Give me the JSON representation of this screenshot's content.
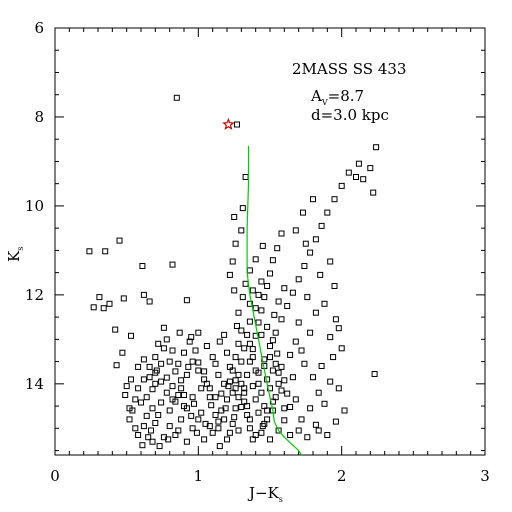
{
  "chart_data": {
    "type": "scatter",
    "title": "",
    "xlabel": {
      "main": "J−K",
      "sub": "s"
    },
    "ylabel": {
      "main": "K",
      "sub": "s"
    },
    "xlim": [
      0,
      3
    ],
    "ylim": [
      15.6,
      6
    ],
    "y_inverted": true,
    "xticks": [
      "0",
      "1",
      "2",
      "3"
    ],
    "yticks": [
      "6",
      "8",
      "10",
      "12",
      "14"
    ],
    "grid": false,
    "annotations": {
      "cluster": "2MASS SS 433",
      "av_main": "A",
      "av_sub": "V",
      "av_value": "=8.7",
      "distance": "d=3.0 kpc"
    },
    "highlight_star": {
      "x": 1.21,
      "y": 8.17,
      "color": "#cc0000"
    },
    "isochrone": {
      "color": "#00cc00",
      "x": [
        1.35,
        1.35,
        1.34,
        1.34,
        1.34,
        1.36,
        1.39,
        1.42,
        1.45,
        1.48,
        1.5,
        1.52,
        1.53,
        1.56,
        1.6,
        1.65,
        1.7,
        1.72
      ],
      "y": [
        8.65,
        9.5,
        10.5,
        11.0,
        11.5,
        12.0,
        12.5,
        13.0,
        13.5,
        14.0,
        14.3,
        14.6,
        14.85,
        15.05,
        15.2,
        15.35,
        15.5,
        15.6
      ]
    },
    "series": [
      {
        "marker": "open-square",
        "color": "#000000",
        "points": [
          [
            0.85,
            7.57
          ],
          [
            0.24,
            11.02
          ],
          [
            0.35,
            11.02
          ],
          [
            0.45,
            10.78
          ],
          [
            0.31,
            12.05
          ],
          [
            0.27,
            12.28
          ],
          [
            0.61,
            11.35
          ],
          [
            0.62,
            12.0
          ],
          [
            0.34,
            12.3
          ],
          [
            0.38,
            12.2
          ],
          [
            0.48,
            12.08
          ],
          [
            0.66,
            12.15
          ],
          [
            0.53,
            12.92
          ],
          [
            0.92,
            12.12
          ],
          [
            0.82,
            11.32
          ],
          [
            0.62,
            13.45
          ],
          [
            0.66,
            13.62
          ],
          [
            0.71,
            13.7
          ],
          [
            0.5,
            14.05
          ],
          [
            0.49,
            14.25
          ],
          [
            0.47,
            13.3
          ],
          [
            0.42,
            12.78
          ],
          [
            0.43,
            13.58
          ],
          [
            0.53,
            13.9
          ],
          [
            0.58,
            13.62
          ],
          [
            0.6,
            14.42
          ],
          [
            0.56,
            15.0
          ],
          [
            0.61,
            15.38
          ],
          [
            0.65,
            15.2
          ],
          [
            0.52,
            14.55
          ],
          [
            0.64,
            14.72
          ],
          [
            0.7,
            14.88
          ],
          [
            0.78,
            13.86
          ],
          [
            0.82,
            14.05
          ],
          [
            0.88,
            13.92
          ],
          [
            0.9,
            14.25
          ],
          [
            0.93,
            13.62
          ],
          [
            0.87,
            12.85
          ],
          [
            0.72,
            13.1
          ],
          [
            0.76,
            12.74
          ],
          [
            0.95,
            12.95
          ],
          [
            0.98,
            13.25
          ],
          [
            1.0,
            13.52
          ],
          [
            1.04,
            13.72
          ],
          [
            1.06,
            14.0
          ],
          [
            1.08,
            14.3
          ],
          [
            1.12,
            13.55
          ],
          [
            1.15,
            13.05
          ],
          [
            1.18,
            12.9
          ],
          [
            1.2,
            13.3
          ],
          [
            1.22,
            13.62
          ],
          [
            1.26,
            13.92
          ],
          [
            1.24,
            14.2
          ],
          [
            1.19,
            14.55
          ],
          [
            1.14,
            14.85
          ],
          [
            1.1,
            15.1
          ],
          [
            1.05,
            14.9
          ],
          [
            0.99,
            15.1
          ],
          [
            0.95,
            14.72
          ],
          [
            0.92,
            15.3
          ],
          [
            0.86,
            15.05
          ],
          [
            0.8,
            14.6
          ],
          [
            0.74,
            14.42
          ],
          [
            0.68,
            14.12
          ],
          [
            0.67,
            15.05
          ],
          [
            0.73,
            15.4
          ],
          [
            0.79,
            15.25
          ],
          [
            0.84,
            14.4
          ],
          [
            0.97,
            14.45
          ],
          [
            1.02,
            14.65
          ],
          [
            1.09,
            14.48
          ],
          [
            1.16,
            14.22
          ],
          [
            1.21,
            14.05
          ],
          [
            1.25,
            14.75
          ],
          [
            1.28,
            15.05
          ],
          [
            1.3,
            14.52
          ],
          [
            1.32,
            14.1
          ],
          [
            1.34,
            13.8
          ],
          [
            1.36,
            13.5
          ],
          [
            1.38,
            13.22
          ],
          [
            1.4,
            12.92
          ],
          [
            1.42,
            12.62
          ],
          [
            1.44,
            12.35
          ],
          [
            1.46,
            12.05
          ],
          [
            1.48,
            11.8
          ],
          [
            1.5,
            11.52
          ],
          [
            1.52,
            11.22
          ],
          [
            1.55,
            10.95
          ],
          [
            1.58,
            10.62
          ],
          [
            1.45,
            10.9
          ],
          [
            1.4,
            11.2
          ],
          [
            1.36,
            11.45
          ],
          [
            1.33,
            11.75
          ],
          [
            1.31,
            12.05
          ],
          [
            1.28,
            12.4
          ],
          [
            1.27,
            12.7
          ],
          [
            1.25,
            11.9
          ],
          [
            1.22,
            11.55
          ],
          [
            1.24,
            11.25
          ],
          [
            1.26,
            10.85
          ],
          [
            1.3,
            10.55
          ],
          [
            1.33,
            9.35
          ],
          [
            1.25,
            10.25
          ],
          [
            1.31,
            10.05
          ],
          [
            1.48,
            12.72
          ],
          [
            1.52,
            13.02
          ],
          [
            1.55,
            13.32
          ],
          [
            1.58,
            13.62
          ],
          [
            1.6,
            13.92
          ],
          [
            1.62,
            14.22
          ],
          [
            1.64,
            14.52
          ],
          [
            1.6,
            14.82
          ],
          [
            1.56,
            15.05
          ],
          [
            1.5,
            15.25
          ],
          [
            1.45,
            14.95
          ],
          [
            1.42,
            14.65
          ],
          [
            1.4,
            14.35
          ],
          [
            1.38,
            14.05
          ],
          [
            1.42,
            13.75
          ],
          [
            1.46,
            13.45
          ],
          [
            1.5,
            13.15
          ],
          [
            1.54,
            12.85
          ],
          [
            1.58,
            12.55
          ],
          [
            1.62,
            12.25
          ],
          [
            1.66,
            11.95
          ],
          [
            1.7,
            11.65
          ],
          [
            1.74,
            11.35
          ],
          [
            1.78,
            11.05
          ],
          [
            1.82,
            10.75
          ],
          [
            1.86,
            10.45
          ],
          [
            1.9,
            10.15
          ],
          [
            1.95,
            9.85
          ],
          [
            2.0,
            9.55
          ],
          [
            2.05,
            9.25
          ],
          [
            2.1,
            9.35
          ],
          [
            2.12,
            9.05
          ],
          [
            2.15,
            9.4
          ],
          [
            2.2,
            9.15
          ],
          [
            2.24,
            8.68
          ],
          [
            2.22,
            9.7
          ],
          [
            2.23,
            13.78
          ],
          [
            1.72,
            13.25
          ],
          [
            1.78,
            12.85
          ],
          [
            1.82,
            12.4
          ],
          [
            1.76,
            12.05
          ],
          [
            1.7,
            12.62
          ],
          [
            1.68,
            13.05
          ],
          [
            1.74,
            13.55
          ],
          [
            1.8,
            13.85
          ],
          [
            1.84,
            14.2
          ],
          [
            1.78,
            14.55
          ],
          [
            1.72,
            14.8
          ],
          [
            1.68,
            14.35
          ],
          [
            1.66,
            13.85
          ],
          [
            1.64,
            13.35
          ],
          [
            1.86,
            13.6
          ],
          [
            1.92,
            13.95
          ],
          [
            1.88,
            14.45
          ],
          [
            1.82,
            14.92
          ],
          [
            1.76,
            15.2
          ],
          [
            1.7,
            15.05
          ],
          [
            1.64,
            15.15
          ],
          [
            1.92,
            12.95
          ],
          [
            1.96,
            12.55
          ],
          [
            1.88,
            12.2
          ],
          [
            1.95,
            11.8
          ],
          [
            1.85,
            11.55
          ],
          [
            1.92,
            11.25
          ],
          [
            1.75,
            10.85
          ],
          [
            1.6,
            11.85
          ],
          [
            1.56,
            12.15
          ],
          [
            1.53,
            12.45
          ],
          [
            1.68,
            10.55
          ],
          [
            1.8,
            9.85
          ],
          [
            1.73,
            10.15
          ],
          [
            1.27,
            8.17
          ],
          [
            1.44,
            12.9
          ],
          [
            1.46,
            13.6
          ],
          [
            1.48,
            13.9
          ],
          [
            1.44,
            14.2
          ],
          [
            1.46,
            14.5
          ],
          [
            1.48,
            14.8
          ],
          [
            1.52,
            14.6
          ],
          [
            1.54,
            14.3
          ],
          [
            1.56,
            14.0
          ],
          [
            1.52,
            13.7
          ],
          [
            1.5,
            13.4
          ],
          [
            1.36,
            12.6
          ],
          [
            1.34,
            12.9
          ],
          [
            1.32,
            13.2
          ],
          [
            1.3,
            13.5
          ],
          [
            1.28,
            13.8
          ],
          [
            1.26,
            14.1
          ],
          [
            1.32,
            14.4
          ],
          [
            1.34,
            14.7
          ],
          [
            1.36,
            15.0
          ],
          [
            1.38,
            15.25
          ],
          [
            1.2,
            15.25
          ],
          [
            1.15,
            15.4
          ],
          [
            1.12,
            14.7
          ],
          [
            1.08,
            14.95
          ],
          [
            1.04,
            15.25
          ],
          [
            1.0,
            14.8
          ],
          [
            0.96,
            15.0
          ],
          [
            0.92,
            14.55
          ],
          [
            0.88,
            14.8
          ],
          [
            0.84,
            15.15
          ],
          [
            0.8,
            14.95
          ],
          [
            0.76,
            15.2
          ],
          [
            0.72,
            14.7
          ],
          [
            0.68,
            14.55
          ],
          [
            0.64,
            14.3
          ],
          [
            0.62,
            13.9
          ],
          [
            0.7,
            13.4
          ],
          [
            0.76,
            13.2
          ],
          [
            0.8,
            13.5
          ],
          [
            0.84,
            13.72
          ],
          [
            0.9,
            13.3
          ],
          [
            0.94,
            13.05
          ],
          [
            1.0,
            12.85
          ],
          [
            1.06,
            13.15
          ],
          [
            1.1,
            13.4
          ],
          [
            1.14,
            13.8
          ],
          [
            1.18,
            14.0
          ],
          [
            1.02,
            14.1
          ],
          [
            0.96,
            14.3
          ],
          [
            0.9,
            14.5
          ],
          [
            0.86,
            14.25
          ],
          [
            0.82,
            14.35
          ],
          [
            0.78,
            14.2
          ],
          [
            0.74,
            13.95
          ],
          [
            0.7,
            14.0
          ],
          [
            0.66,
            13.85
          ],
          [
            0.58,
            14.1
          ],
          [
            0.56,
            14.35
          ],
          [
            0.54,
            14.6
          ],
          [
            0.52,
            14.8
          ],
          [
            0.58,
            15.15
          ],
          [
            0.62,
            14.95
          ],
          [
            0.68,
            15.3
          ],
          [
            1.98,
            14.1
          ],
          [
            2.02,
            14.6
          ],
          [
            1.96,
            14.85
          ],
          [
            1.9,
            15.15
          ],
          [
            1.84,
            15.05
          ],
          [
            1.94,
            13.4
          ],
          [
            2.0,
            13.2
          ],
          [
            1.98,
            12.75
          ],
          [
            1.6,
            14.55
          ],
          [
            1.58,
            14.15
          ],
          [
            1.56,
            13.75
          ],
          [
            1.54,
            13.55
          ],
          [
            1.42,
            14.0
          ],
          [
            1.4,
            13.7
          ],
          [
            1.38,
            13.4
          ],
          [
            1.36,
            13.1
          ],
          [
            1.4,
            12.3
          ],
          [
            1.42,
            12.0
          ],
          [
            1.44,
            11.7
          ],
          [
            1.38,
            11.9
          ],
          [
            1.36,
            12.2
          ],
          [
            1.3,
            12.8
          ],
          [
            1.28,
            13.1
          ],
          [
            1.26,
            13.4
          ],
          [
            1.24,
            13.7
          ],
          [
            1.22,
            13.95
          ],
          [
            1.2,
            14.35
          ],
          [
            1.16,
            14.6
          ],
          [
            1.12,
            14.3
          ],
          [
            1.08,
            14.1
          ],
          [
            1.04,
            13.9
          ],
          [
            1.0,
            13.7
          ],
          [
            0.96,
            13.5
          ],
          [
            0.92,
            13.8
          ],
          [
            0.88,
            14.1
          ],
          [
            0.86,
            13.55
          ],
          [
            0.82,
            13.25
          ],
          [
            0.78,
            13.0
          ],
          [
            0.74,
            13.55
          ],
          [
            0.7,
            13.75
          ],
          [
            1.5,
            14.1
          ],
          [
            1.52,
            14.4
          ],
          [
            1.48,
            14.6
          ],
          [
            1.46,
            14.9
          ],
          [
            1.44,
            15.1
          ],
          [
            1.4,
            15.15
          ],
          [
            1.36,
            14.8
          ],
          [
            1.34,
            14.5
          ],
          [
            1.32,
            14.2
          ],
          [
            1.3,
            14.0
          ],
          [
            1.28,
            14.3
          ],
          [
            1.26,
            14.55
          ],
          [
            1.24,
            14.9
          ],
          [
            1.22,
            15.1
          ],
          [
            1.18,
            14.8
          ],
          [
            1.14,
            15.0
          ]
        ]
      }
    ]
  }
}
